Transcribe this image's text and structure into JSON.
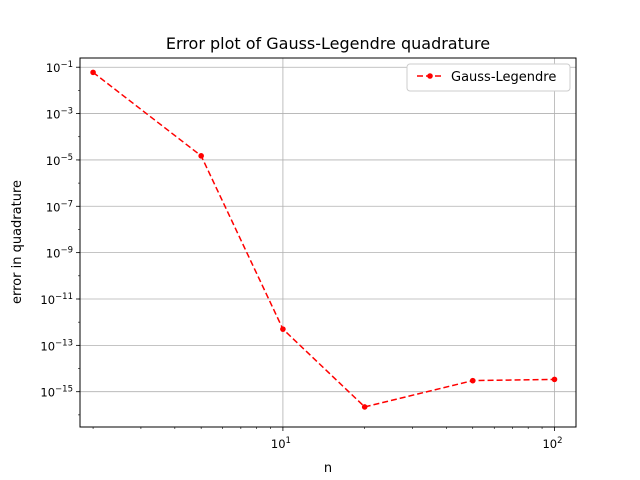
{
  "chart_data": {
    "type": "line",
    "title": "Error plot of Gauss-Legendre quadrature",
    "xlabel": "n",
    "ylabel": "error in quadrature",
    "xscale": "log",
    "yscale": "log",
    "xlim": [
      1.79,
      120
    ],
    "ylim": [
      3e-17,
      0.25
    ],
    "grid": true,
    "legend_position": "top-right",
    "x_ticks": [
      {
        "value": 10,
        "base": "10",
        "exp": "1"
      },
      {
        "value": 100,
        "base": "10",
        "exp": "2"
      }
    ],
    "y_ticks": [
      {
        "value": 0.1,
        "base": "10",
        "exp": "−1"
      },
      {
        "value": 0.001,
        "base": "10",
        "exp": "−3"
      },
      {
        "value": 1e-05,
        "base": "10",
        "exp": "−5"
      },
      {
        "value": 1e-07,
        "base": "10",
        "exp": "−7"
      },
      {
        "value": 1e-09,
        "base": "10",
        "exp": "−9"
      },
      {
        "value": 1e-11,
        "base": "10",
        "exp": "−11"
      },
      {
        "value": 1e-13,
        "base": "10",
        "exp": "−13"
      },
      {
        "value": 1e-15,
        "base": "10",
        "exp": "−15"
      }
    ],
    "series": [
      {
        "name": "Gauss-Legendre",
        "color": "#ff0000",
        "linestyle": "dashed",
        "marker": "circle",
        "x": [
          2,
          5,
          10,
          20,
          50,
          100
        ],
        "y": [
          0.06,
          1.5e-05,
          5e-13,
          2.2e-16,
          3e-15,
          3.4e-15
        ]
      }
    ]
  }
}
